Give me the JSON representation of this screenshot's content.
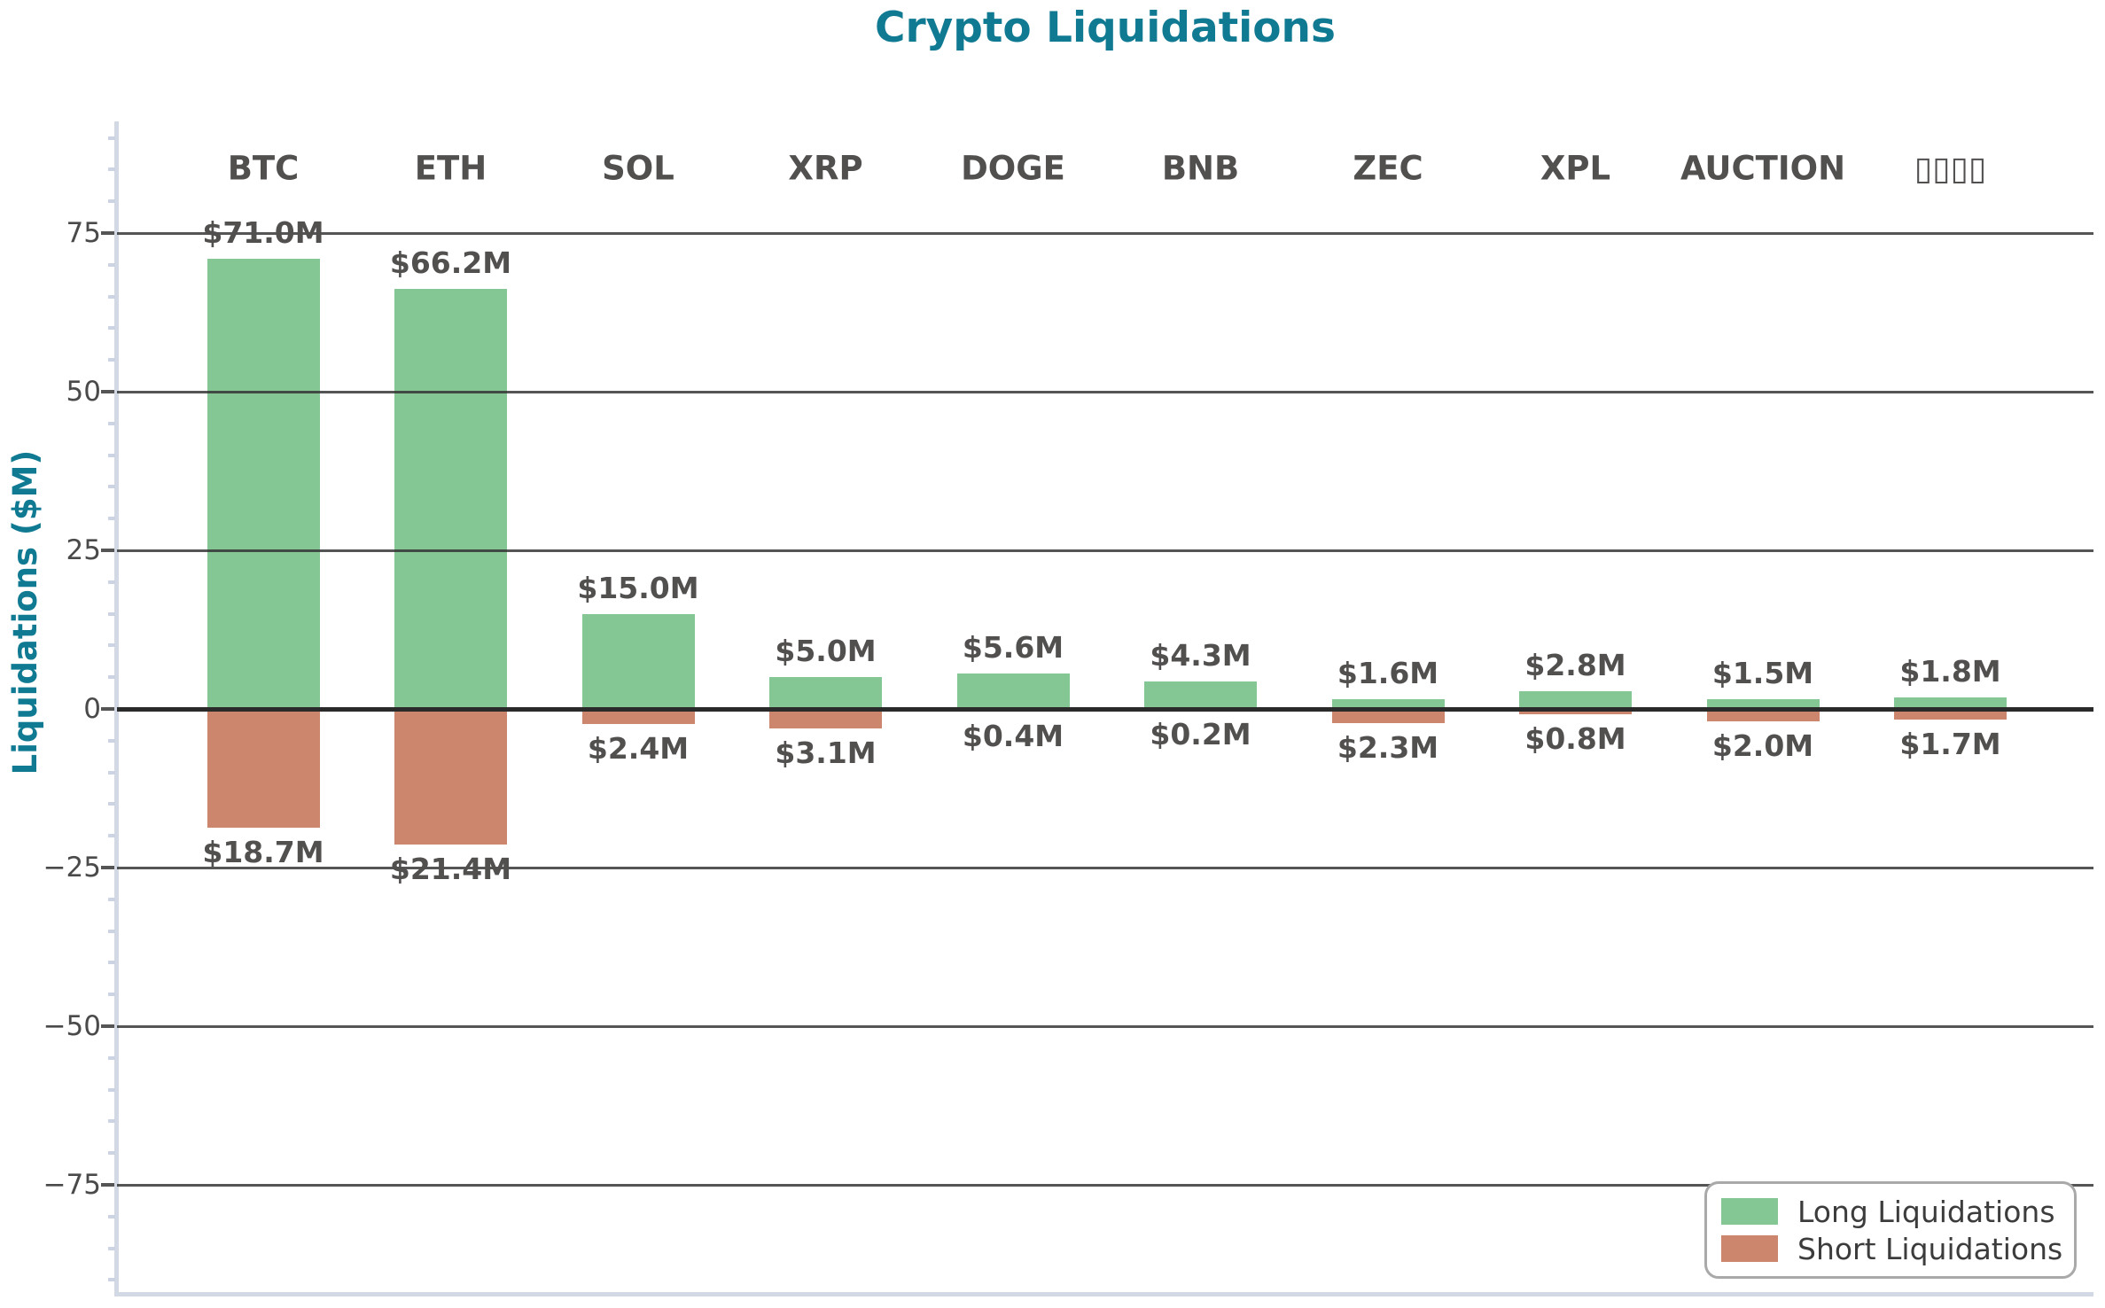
{
  "title": "Crypto Liquidations",
  "chart_data": {
    "type": "bar",
    "title": "Crypto Liquidations",
    "xlabel": "",
    "ylabel": "Liquidations ($M)",
    "categories": [
      "BTC",
      "ETH",
      "SOL",
      "XRP",
      "DOGE",
      "BNB",
      "ZEC",
      "XPL",
      "AUCTION",
      "▯▯▯▯"
    ],
    "series": [
      {
        "name": "Long Liquidations",
        "color": "#85c794",
        "direction": "positive",
        "values": [
          71.0,
          66.2,
          15.0,
          5.0,
          5.6,
          4.3,
          1.6,
          2.8,
          1.5,
          1.8
        ],
        "labels": [
          "$71.0M",
          "$66.2M",
          "$15.0M",
          "$5.0M",
          "$5.6M",
          "$4.3M",
          "$1.6M",
          "$2.8M",
          "$1.5M",
          "$1.8M"
        ]
      },
      {
        "name": "Short Liquidations",
        "color": "#cd866e",
        "direction": "negative",
        "values": [
          18.7,
          21.4,
          2.4,
          3.1,
          0.4,
          0.2,
          2.3,
          0.8,
          2.0,
          1.7
        ],
        "labels": [
          "$18.7M",
          "$21.4M",
          "$2.4M",
          "$3.1M",
          "$0.4M",
          "$0.2M",
          "$2.3M",
          "$0.8M",
          "$2.0M",
          "$1.7M"
        ]
      }
    ],
    "y_axis": {
      "ticks": [
        {
          "value": 75,
          "label": "75"
        },
        {
          "value": 50,
          "label": "50"
        },
        {
          "value": 25,
          "label": "25"
        },
        {
          "value": 0,
          "label": "0"
        },
        {
          "value": -25,
          "label": "−25"
        },
        {
          "value": -50,
          "label": "−50"
        },
        {
          "value": -75,
          "label": "−75"
        }
      ],
      "minor_tick_step": 5,
      "ylim": [
        -92.4,
        92.6
      ],
      "grid": true,
      "zero_line": true
    },
    "legend": {
      "position": "lower right",
      "entries": [
        "Long Liquidations",
        "Short Liquidations"
      ]
    },
    "colors": {
      "long": "#85c794",
      "short": "#cd866e",
      "title": "#117a93",
      "grid": "#303030",
      "spine": "#d2d8e4",
      "label_text": "#524f4f"
    }
  }
}
